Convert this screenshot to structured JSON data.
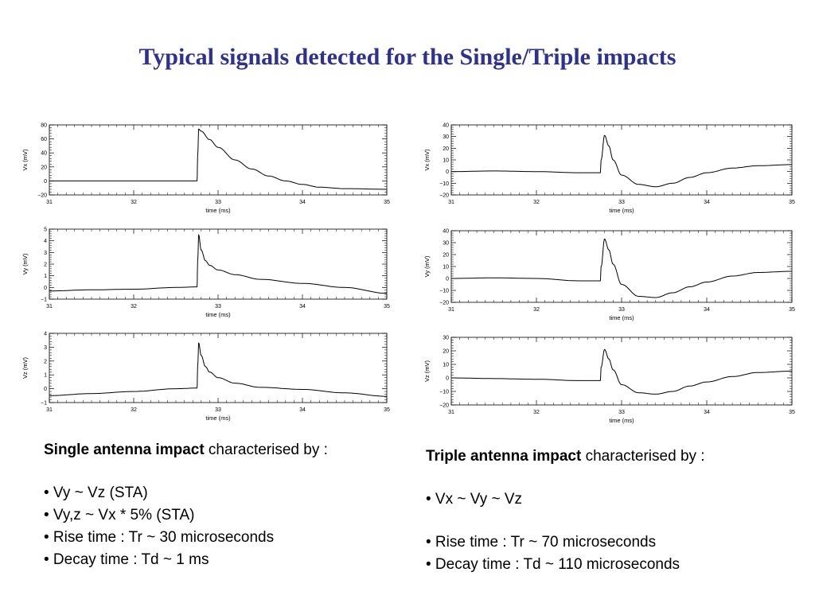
{
  "title": "Typical signals detected for the Single/Triple impacts",
  "single": {
    "heading_bold": "Single antenna impact",
    "heading_rest": " characterised by :",
    "bullets": [
      "• Vy ~ Vz (STA)",
      "• Vy,z ~ Vx * 5% (STA)",
      "• Rise time : Tr ~ 30 microseconds",
      "• Decay time : Td ~ 1 ms"
    ]
  },
  "triple": {
    "heading_bold": "Triple antenna impact",
    "heading_rest": " characterised by :",
    "bullets_1": [
      "• Vx ~ Vy ~ Vz"
    ],
    "bullets_2": [
      "• Rise time : Tr ~ 70 microseconds",
      "• Decay time : Td ~ 110 microseconds"
    ]
  },
  "colors": {
    "title": "#2e3192",
    "trace": "#000000"
  },
  "chart_data": [
    {
      "type": "line",
      "id": "single-vx",
      "xlabel": "time (ms)",
      "ylabel": "Vx (mV)",
      "xlim": [
        31,
        35
      ],
      "ylim": [
        -20,
        80
      ],
      "xticks": [
        31,
        32,
        33,
        34,
        35
      ],
      "yticks": [
        -20,
        0,
        20,
        40,
        60,
        80
      ],
      "x": [
        31.0,
        32.0,
        32.75,
        32.76,
        32.77,
        32.8,
        32.9,
        33.0,
        33.2,
        33.4,
        33.6,
        33.8,
        34.0,
        34.2,
        34.5,
        35.0
      ],
      "y": [
        0,
        0,
        0,
        40,
        74,
        71,
        59,
        48,
        30,
        17,
        7,
        0,
        -5,
        -9,
        -11,
        -12
      ]
    },
    {
      "type": "line",
      "id": "single-vy",
      "xlabel": "time (ms)",
      "ylabel": "Vy (mV)",
      "xlim": [
        31,
        35
      ],
      "ylim": [
        -1,
        5
      ],
      "xticks": [
        31,
        32,
        33,
        34,
        35
      ],
      "yticks": [
        -1,
        0,
        1,
        2,
        3,
        4,
        5
      ],
      "x": [
        31.0,
        31.5,
        32.0,
        32.5,
        32.75,
        32.76,
        32.77,
        32.8,
        32.85,
        32.9,
        33.0,
        33.2,
        33.5,
        34.0,
        34.5,
        35.0
      ],
      "y": [
        -0.3,
        -0.2,
        -0.15,
        0.0,
        0.05,
        2.5,
        4.5,
        3.2,
        2.3,
        1.9,
        1.5,
        1.1,
        0.7,
        0.35,
        0.0,
        -0.5
      ]
    },
    {
      "type": "line",
      "id": "single-vz",
      "xlabel": "time (ms)",
      "ylabel": "Vz (mV)",
      "xlim": [
        31,
        35
      ],
      "ylim": [
        -1,
        4
      ],
      "xticks": [
        31,
        32,
        33,
        34,
        35
      ],
      "yticks": [
        -1,
        0,
        1,
        2,
        3,
        4
      ],
      "x": [
        31.0,
        31.5,
        32.0,
        32.5,
        32.75,
        32.76,
        32.77,
        32.8,
        32.85,
        32.9,
        33.0,
        33.2,
        33.5,
        34.0,
        34.5,
        35.0
      ],
      "y": [
        -0.5,
        -0.35,
        -0.2,
        0.0,
        0.05,
        1.8,
        3.3,
        2.4,
        1.6,
        1.2,
        0.8,
        0.4,
        0.1,
        -0.05,
        -0.3,
        -0.55
      ]
    },
    {
      "type": "line",
      "id": "triple-vx",
      "xlabel": "time (ms)",
      "ylabel": "Vx (mV)",
      "xlim": [
        31,
        35
      ],
      "ylim": [
        -20,
        40
      ],
      "xticks": [
        31,
        32,
        33,
        34,
        35
      ],
      "yticks": [
        -20,
        -10,
        0,
        10,
        20,
        30,
        40
      ],
      "x": [
        31.0,
        31.5,
        32.0,
        32.5,
        32.75,
        32.76,
        32.8,
        32.85,
        32.9,
        33.0,
        33.2,
        33.4,
        33.6,
        33.8,
        34.0,
        34.3,
        34.6,
        35.0
      ],
      "y": [
        0,
        0.5,
        0,
        -1,
        -1,
        10,
        31,
        22,
        10,
        -3,
        -11,
        -13,
        -10,
        -5,
        -1,
        3,
        5,
        6
      ]
    },
    {
      "type": "line",
      "id": "triple-vy",
      "xlabel": "time (ms)",
      "ylabel": "Vy (mV)",
      "xlim": [
        31,
        35
      ],
      "ylim": [
        -20,
        40
      ],
      "xticks": [
        31,
        32,
        33,
        34,
        35
      ],
      "yticks": [
        -20,
        -10,
        0,
        10,
        20,
        30,
        40
      ],
      "x": [
        31.0,
        31.5,
        32.0,
        32.5,
        32.75,
        32.76,
        32.8,
        32.85,
        32.9,
        33.0,
        33.2,
        33.4,
        33.6,
        33.8,
        34.0,
        34.3,
        34.6,
        35.0
      ],
      "y": [
        0,
        0.5,
        0,
        -2,
        -2,
        10,
        33,
        24,
        12,
        -5,
        -15,
        -16,
        -12,
        -7,
        -3,
        2,
        5,
        6
      ]
    },
    {
      "type": "line",
      "id": "triple-vz",
      "xlabel": "time (ms)",
      "ylabel": "Vz (mV)",
      "xlim": [
        31,
        35
      ],
      "ylim": [
        -20,
        30
      ],
      "xticks": [
        31,
        32,
        33,
        34,
        35
      ],
      "yticks": [
        -20,
        -10,
        0,
        10,
        20,
        30
      ],
      "x": [
        31.0,
        31.5,
        32.0,
        32.5,
        32.75,
        32.76,
        32.8,
        32.85,
        32.9,
        33.0,
        33.2,
        33.4,
        33.6,
        33.8,
        34.0,
        34.3,
        34.6,
        35.0
      ],
      "y": [
        0,
        -0.5,
        -1,
        -2,
        -2,
        8,
        21,
        14,
        6,
        -5,
        -11,
        -12,
        -10,
        -6,
        -3,
        1,
        4,
        5
      ]
    }
  ]
}
